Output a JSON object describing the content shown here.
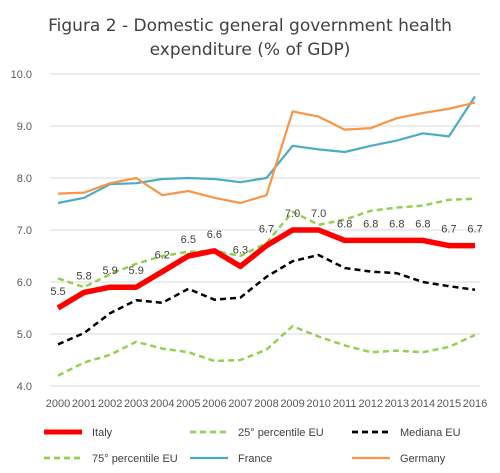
{
  "chart_data": {
    "type": "line",
    "title": [
      "Figura 2 - Domestic general government health",
      "expenditure (% of GDP)"
    ],
    "xlabel": "",
    "ylabel": "",
    "x": [
      "2000",
      "2001",
      "2002",
      "2003",
      "2004",
      "2005",
      "2006",
      "2007",
      "2008",
      "2009",
      "2010",
      "2011",
      "2012",
      "2013",
      "2014",
      "2015",
      "2016"
    ],
    "y_ticks": [
      "4.0",
      "5.0",
      "6.0",
      "7.0",
      "8.0",
      "9.0",
      "10.0"
    ],
    "ylim": [
      4.0,
      10.0
    ],
    "grid": "horizontal",
    "legend_position": "bottom",
    "series": [
      {
        "name": "Italy",
        "color": "#ff0000",
        "style": "solid-thick",
        "values": [
          5.5,
          5.8,
          5.9,
          5.9,
          6.2,
          6.5,
          6.6,
          6.3,
          6.7,
          7.0,
          7.0,
          6.8,
          6.8,
          6.8,
          6.8,
          6.7,
          6.7
        ],
        "data_labels": [
          "5.5",
          "5.8",
          "5.9",
          "5.9",
          "6.2",
          "6.5",
          "6.6",
          "6.3",
          "6.7",
          "7.0",
          "7.0",
          "6.8",
          "6.8",
          "6.8",
          "6.8",
          "6.7",
          "6.7"
        ]
      },
      {
        "name": "25° percentile EU",
        "color": "#92d050",
        "style": "dashed",
        "values": [
          4.2,
          4.45,
          4.6,
          4.85,
          4.72,
          4.65,
          4.48,
          4.5,
          4.7,
          5.15,
          4.95,
          4.78,
          4.65,
          4.68,
          4.65,
          4.75,
          4.98
        ]
      },
      {
        "name": "Mediana EU",
        "color": "#000000",
        "style": "dashed",
        "values": [
          4.8,
          5.02,
          5.4,
          5.65,
          5.6,
          5.87,
          5.66,
          5.7,
          6.1,
          6.4,
          6.52,
          6.27,
          6.2,
          6.17,
          6.0,
          5.92,
          5.85
        ]
      },
      {
        "name": "75° percentile EU",
        "color": "#92d050",
        "style": "dashed",
        "values": [
          6.07,
          5.9,
          6.15,
          6.35,
          6.5,
          6.58,
          6.6,
          6.5,
          6.75,
          7.35,
          7.1,
          7.2,
          7.37,
          7.43,
          7.47,
          7.58,
          7.6
        ]
      },
      {
        "name": "France",
        "color": "#4bacc6",
        "style": "solid",
        "values": [
          7.52,
          7.62,
          7.88,
          7.9,
          7.98,
          8.0,
          7.98,
          7.92,
          8.0,
          8.62,
          8.55,
          8.5,
          8.62,
          8.72,
          8.86,
          8.8,
          9.57
        ]
      },
      {
        "name": "Germany",
        "color": "#f79646",
        "style": "solid",
        "values": [
          7.7,
          7.72,
          7.9,
          8.0,
          7.67,
          7.75,
          7.62,
          7.52,
          7.67,
          9.28,
          9.18,
          8.93,
          8.96,
          9.15,
          9.25,
          9.33,
          9.45
        ]
      }
    ]
  }
}
